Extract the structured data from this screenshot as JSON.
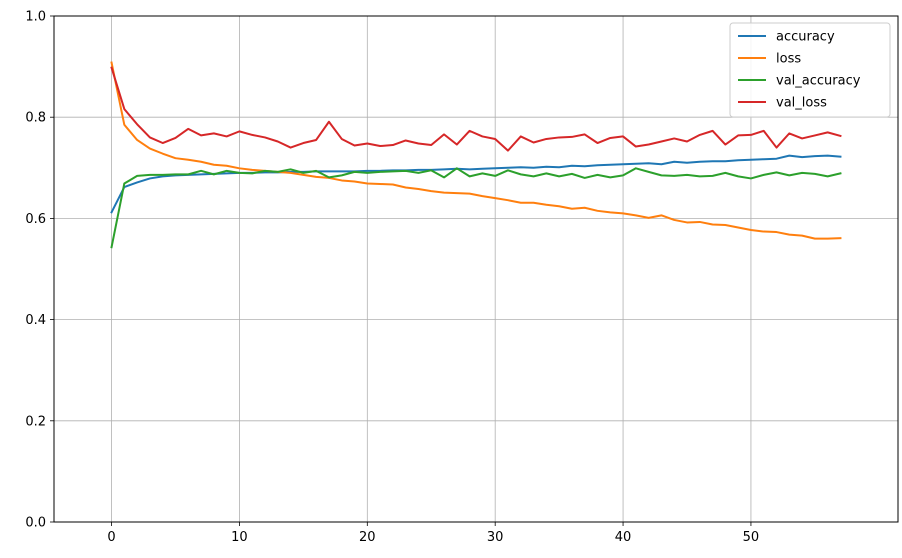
{
  "chart_data": {
    "type": "line",
    "title": "",
    "xlabel": "",
    "ylabel": "",
    "xlim": [
      -4.5,
      61.5
    ],
    "ylim": [
      0.0,
      1.0
    ],
    "xticks": [
      0,
      10,
      20,
      30,
      40,
      50
    ],
    "xtick_labels": [
      "0",
      "10",
      "20",
      "30",
      "40",
      "50"
    ],
    "yticks": [
      0.0,
      0.2,
      0.4,
      0.6,
      0.8,
      1.0
    ],
    "ytick_labels": [
      "0.0",
      "0.2",
      "0.4",
      "0.6",
      "0.8",
      "1.0"
    ],
    "grid": true,
    "legend_position": "top-right",
    "x": [
      0,
      1,
      2,
      3,
      4,
      5,
      6,
      7,
      8,
      9,
      10,
      11,
      12,
      13,
      14,
      15,
      16,
      17,
      18,
      19,
      20,
      21,
      22,
      23,
      24,
      25,
      26,
      27,
      28,
      29,
      30,
      31,
      32,
      33,
      34,
      35,
      36,
      37,
      38,
      39,
      40,
      41,
      42,
      43,
      44,
      45,
      46,
      47,
      48,
      49,
      50,
      51,
      52,
      53,
      54,
      55,
      56,
      57
    ],
    "series": [
      {
        "name": "accuracy",
        "color": "#1f77b4",
        "values": [
          0.612,
          0.662,
          0.671,
          0.679,
          0.683,
          0.685,
          0.686,
          0.687,
          0.688,
          0.689,
          0.69,
          0.69,
          0.691,
          0.691,
          0.692,
          0.692,
          0.693,
          0.693,
          0.693,
          0.693,
          0.694,
          0.694,
          0.695,
          0.695,
          0.696,
          0.696,
          0.697,
          0.698,
          0.697,
          0.698,
          0.699,
          0.7,
          0.701,
          0.7,
          0.702,
          0.701,
          0.704,
          0.703,
          0.705,
          0.706,
          0.707,
          0.708,
          0.709,
          0.707,
          0.712,
          0.71,
          0.712,
          0.713,
          0.713,
          0.715,
          0.716,
          0.717,
          0.718,
          0.724,
          0.721,
          0.723,
          0.724,
          0.722
        ]
      },
      {
        "name": "loss",
        "color": "#ff7f0e",
        "values": [
          0.908,
          0.785,
          0.755,
          0.738,
          0.728,
          0.719,
          0.716,
          0.712,
          0.706,
          0.704,
          0.699,
          0.696,
          0.694,
          0.692,
          0.69,
          0.686,
          0.682,
          0.68,
          0.675,
          0.673,
          0.669,
          0.668,
          0.667,
          0.661,
          0.658,
          0.654,
          0.651,
          0.65,
          0.649,
          0.644,
          0.64,
          0.636,
          0.631,
          0.631,
          0.627,
          0.624,
          0.619,
          0.621,
          0.615,
          0.612,
          0.61,
          0.606,
          0.601,
          0.606,
          0.597,
          0.592,
          0.593,
          0.588,
          0.587,
          0.582,
          0.577,
          0.574,
          0.573,
          0.568,
          0.566,
          0.56,
          0.56,
          0.561
        ]
      },
      {
        "name": "val_accuracy",
        "color": "#2ca02c",
        "values": [
          0.543,
          0.669,
          0.684,
          0.686,
          0.686,
          0.687,
          0.687,
          0.694,
          0.687,
          0.694,
          0.69,
          0.689,
          0.694,
          0.692,
          0.697,
          0.69,
          0.694,
          0.681,
          0.685,
          0.692,
          0.69,
          0.692,
          0.693,
          0.694,
          0.69,
          0.695,
          0.681,
          0.699,
          0.683,
          0.689,
          0.684,
          0.695,
          0.687,
          0.683,
          0.689,
          0.683,
          0.688,
          0.68,
          0.686,
          0.681,
          0.685,
          0.699,
          0.692,
          0.685,
          0.684,
          0.686,
          0.683,
          0.684,
          0.69,
          0.683,
          0.679,
          0.686,
          0.691,
          0.685,
          0.69,
          0.688,
          0.683,
          0.689
        ]
      },
      {
        "name": "val_loss",
        "color": "#d62728",
        "values": [
          0.898,
          0.816,
          0.786,
          0.76,
          0.749,
          0.759,
          0.777,
          0.764,
          0.768,
          0.762,
          0.772,
          0.765,
          0.76,
          0.752,
          0.74,
          0.749,
          0.755,
          0.791,
          0.757,
          0.744,
          0.748,
          0.743,
          0.745,
          0.754,
          0.748,
          0.745,
          0.766,
          0.746,
          0.773,
          0.762,
          0.757,
          0.734,
          0.762,
          0.75,
          0.757,
          0.76,
          0.761,
          0.766,
          0.749,
          0.759,
          0.762,
          0.742,
          0.746,
          0.752,
          0.758,
          0.752,
          0.765,
          0.773,
          0.746,
          0.764,
          0.765,
          0.773,
          0.74,
          0.768,
          0.758,
          0.764,
          0.77,
          0.763
        ]
      }
    ]
  }
}
